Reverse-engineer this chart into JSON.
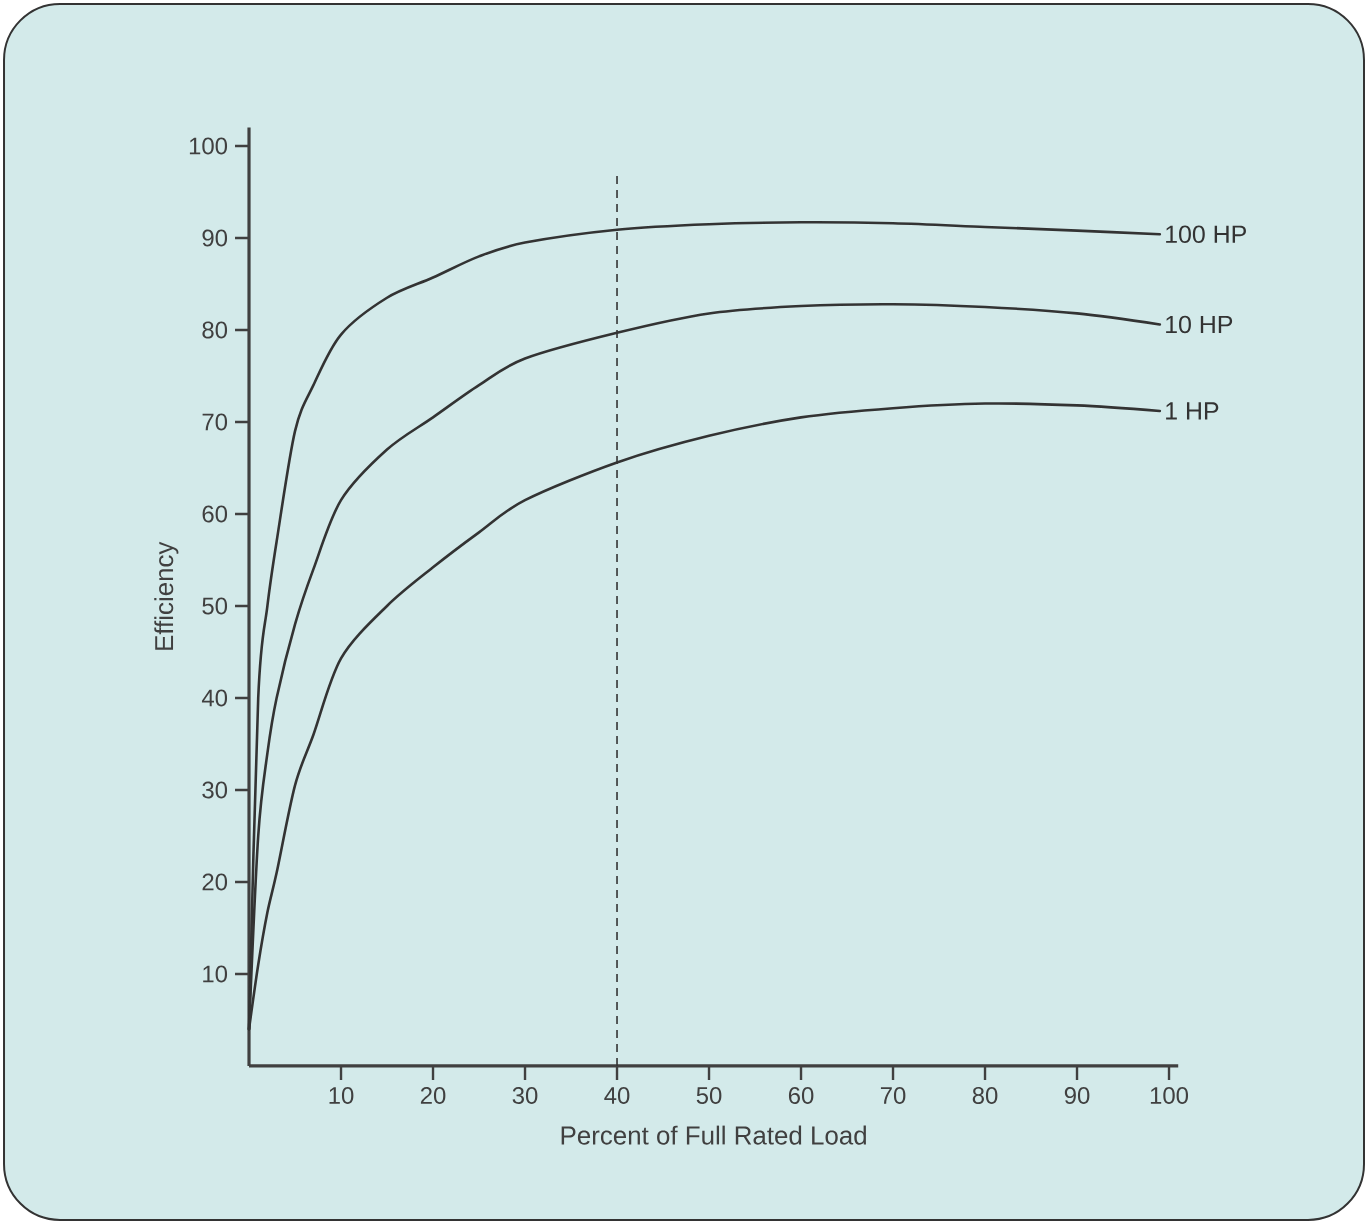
{
  "chart_data": {
    "type": "line",
    "xlabel": "Percent of Full Rated Load",
    "ylabel": "Efficiency",
    "x": [
      0,
      1,
      2,
      3,
      5,
      7,
      10,
      15,
      20,
      25,
      30,
      40,
      50,
      60,
      70,
      80,
      90,
      99
    ],
    "series": [
      {
        "name": "100 HP",
        "color": "#333333",
        "values": [
          4,
          40,
          50,
          57,
          69,
          74,
          79.5,
          83.5,
          85.7,
          88,
          89.5,
          90.9,
          91.5,
          91.7,
          91.6,
          91.2,
          90.8,
          90.4
        ]
      },
      {
        "name": "10 HP",
        "color": "#333333",
        "values": [
          4,
          25,
          34,
          40,
          48,
          54,
          61.5,
          67,
          70.5,
          74,
          76.9,
          79.7,
          81.8,
          82.6,
          82.8,
          82.5,
          81.8,
          80.6
        ]
      },
      {
        "name": "1 HP",
        "color": "#333333",
        "values": [
          4,
          11,
          16.7,
          21,
          30.5,
          36,
          44.3,
          50,
          54.2,
          58,
          61.5,
          65.6,
          68.5,
          70.5,
          71.5,
          72,
          71.8,
          71.2
        ]
      }
    ],
    "xlim": [
      0,
      101
    ],
    "ylim": [
      0,
      102
    ],
    "xticks": [
      10,
      20,
      30,
      40,
      50,
      60,
      70,
      80,
      90,
      100
    ],
    "yticks": [
      10,
      20,
      30,
      40,
      50,
      60,
      70,
      80,
      90,
      100
    ],
    "ref_lines": [
      {
        "axis": "x",
        "value": 40,
        "color": "#333333",
        "line_style": "dashed"
      }
    ],
    "grid": false,
    "legend": false,
    "marker": "none",
    "line_style": "solid"
  }
}
